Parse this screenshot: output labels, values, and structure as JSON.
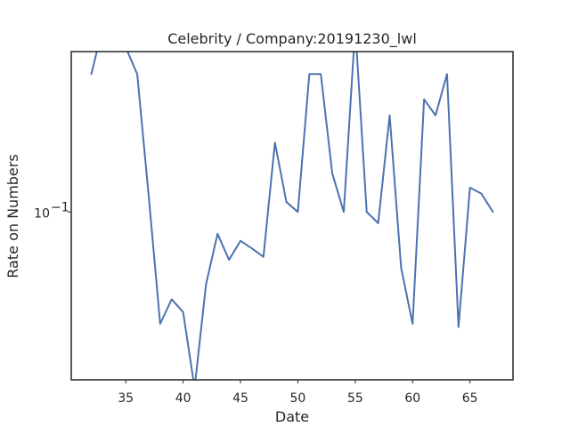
{
  "chart_data": {
    "type": "line",
    "title": "Celebrity / Company:20191230_lwl",
    "xlabel": "Date",
    "ylabel": "Rate on Numbers",
    "xlim": [
      30.25,
      68.75
    ],
    "ylim": [
      0.0148,
      0.62
    ],
    "yscale": "log",
    "grid": false,
    "x_ticks": [
      35,
      40,
      45,
      50,
      55,
      60,
      65
    ],
    "y_ticks": [
      {
        "value": 0.1,
        "label": "10",
        "exp": "−1"
      }
    ],
    "series": [
      {
        "color": "#4c72b0",
        "x": [
          32,
          33,
          34,
          35,
          36,
          37,
          38,
          39,
          40,
          41,
          42,
          43,
          44,
          45,
          46,
          47,
          48,
          49,
          50,
          51,
          52,
          53,
          54,
          55,
          56,
          57,
          58,
          59,
          60,
          61,
          62,
          63,
          64,
          65,
          66,
          67
        ],
        "y": [
          0.48,
          0.82,
          0.82,
          0.65,
          0.48,
          0.12,
          0.028,
          0.037,
          0.032,
          0.0135,
          0.044,
          0.078,
          0.058,
          0.072,
          0.066,
          0.06,
          0.22,
          0.112,
          0.1,
          0.48,
          0.48,
          0.155,
          0.1,
          0.82,
          0.1,
          0.088,
          0.3,
          0.053,
          0.028,
          0.36,
          0.3,
          0.48,
          0.027,
          0.132,
          0.123,
          0.1
        ]
      }
    ]
  },
  "colors": {
    "frame": "#262626",
    "line": "#4c72b0",
    "background": "#ffffff"
  }
}
